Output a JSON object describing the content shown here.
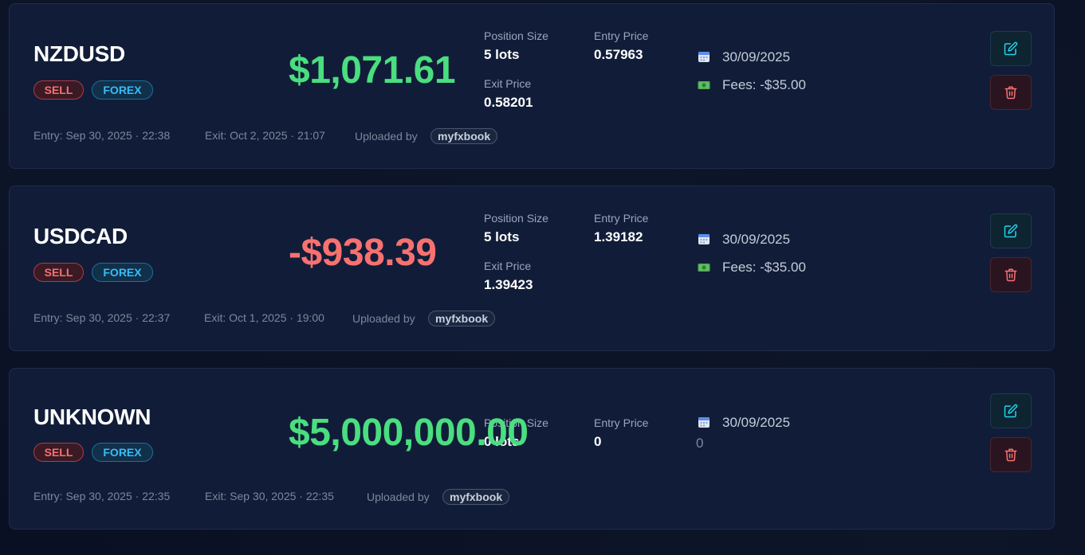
{
  "labels": {
    "position_size": "Position Size",
    "entry_price": "Entry Price",
    "exit_price": "Exit Price",
    "uploaded_by": "Uploaded by"
  },
  "icons": {
    "date": "calendar-icon",
    "fees": "money-icon",
    "edit": "edit-icon",
    "delete": "trash-icon"
  },
  "colors": {
    "profit": "#4ade80",
    "loss": "#f87171",
    "sell": "#f87171",
    "forex": "#38bdf8"
  },
  "trades": [
    {
      "symbol": "NZDUSD",
      "side": "SELL",
      "market": "FOREX",
      "pnl": "$1,071.61",
      "pnl_positive": true,
      "position_size": "5 lots",
      "entry_price": "0.57963",
      "exit_price": "0.58201",
      "date": "30/09/2025",
      "fees": "Fees: -$35.00",
      "entry": "Entry: Sep 30, 2025 · 22:38",
      "exit": "Exit: Oct 2, 2025 · 21:07",
      "uploader": "myfxbook"
    },
    {
      "symbol": "USDCAD",
      "side": "SELL",
      "market": "FOREX",
      "pnl": "-$938.39",
      "pnl_positive": false,
      "position_size": "5 lots",
      "entry_price": "1.39182",
      "exit_price": "1.39423",
      "date": "30/09/2025",
      "fees": "Fees: -$35.00",
      "entry": "Entry: Sep 30, 2025 · 22:37",
      "exit": "Exit: Oct 1, 2025 · 19:00",
      "uploader": "myfxbook"
    },
    {
      "symbol": "UNKNOWN",
      "side": "SELL",
      "market": "FOREX",
      "pnl": "$5,000,000.00",
      "pnl_positive": true,
      "position_size": "0 lots",
      "entry_price": "0",
      "date": "30/09/2025",
      "fees": "0",
      "entry": "Entry: Sep 30, 2025 · 22:35",
      "exit": "Exit: Sep 30, 2025 · 22:35",
      "uploader": "myfxbook"
    }
  ]
}
